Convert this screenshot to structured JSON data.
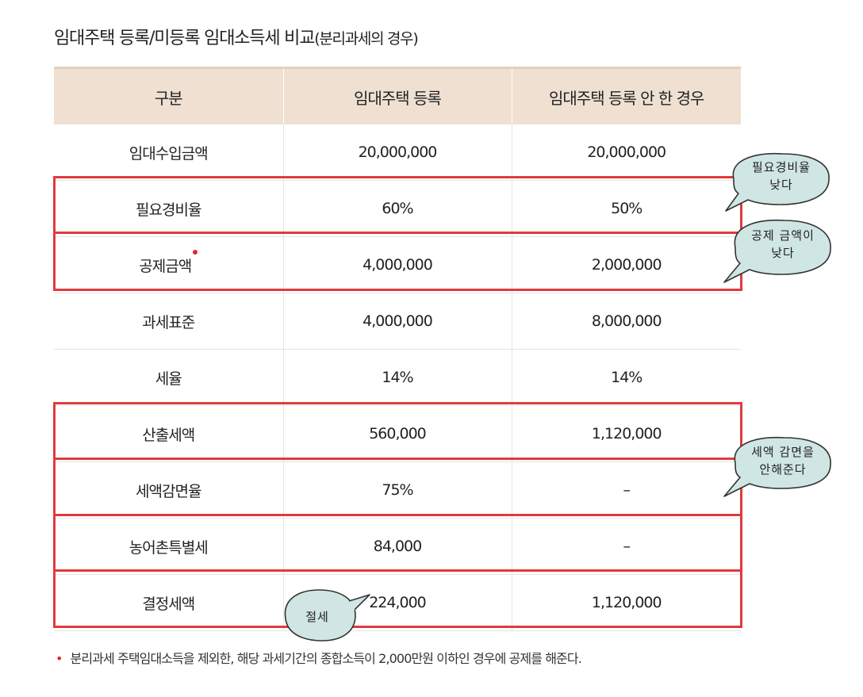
{
  "title": {
    "main": "임대주택 등록/미등록 임대소득세 비교",
    "sub": "(분리과세의 경우)"
  },
  "table": {
    "headers": [
      "구분",
      "임대주택 등록",
      "임대주택 등록 안 한 경우"
    ],
    "rows": [
      {
        "label": "임대수입금액",
        "registered": "20,000,000",
        "unregistered": "20,000,000"
      },
      {
        "label": "필요경비율",
        "registered": "60%",
        "unregistered": "50%"
      },
      {
        "label": "공제금액",
        "registered": "4,000,000",
        "unregistered": "2,000,000"
      },
      {
        "label": "과세표준",
        "registered": "4,000,000",
        "unregistered": "8,000,000"
      },
      {
        "label": "세율",
        "registered": "14%",
        "unregistered": "14%"
      },
      {
        "label": "산출세액",
        "registered": "560,000",
        "unregistered": "1,120,000"
      },
      {
        "label": "세액감면율",
        "registered": "75%",
        "unregistered": "–"
      },
      {
        "label": "농어촌특별세",
        "registered": "84,000",
        "unregistered": "–"
      },
      {
        "label": "결정세액",
        "registered": "224,000",
        "unregistered": "1,120,000"
      }
    ]
  },
  "bubbles": {
    "expense": {
      "line1": "필요경비율",
      "line2": "낮다"
    },
    "deduction": {
      "line1": "공제 금액이",
      "line2": "낮다"
    },
    "reduction": {
      "line1": "세액 감면을",
      "line2": "안해준다"
    },
    "savings": {
      "line1": "절세"
    }
  },
  "footnote": {
    "bullet": "•",
    "text": "분리과세 주택임대소득을 제외한, 해당 과세기간의 종합소득이 2,000만원 이하인 경우에 공제를 해준다."
  },
  "colors": {
    "header_bg": "#efe0d2",
    "highlight_red": "#e03a3e",
    "bubble_fill": "#cfe6e4",
    "bubble_stroke": "#333333"
  }
}
